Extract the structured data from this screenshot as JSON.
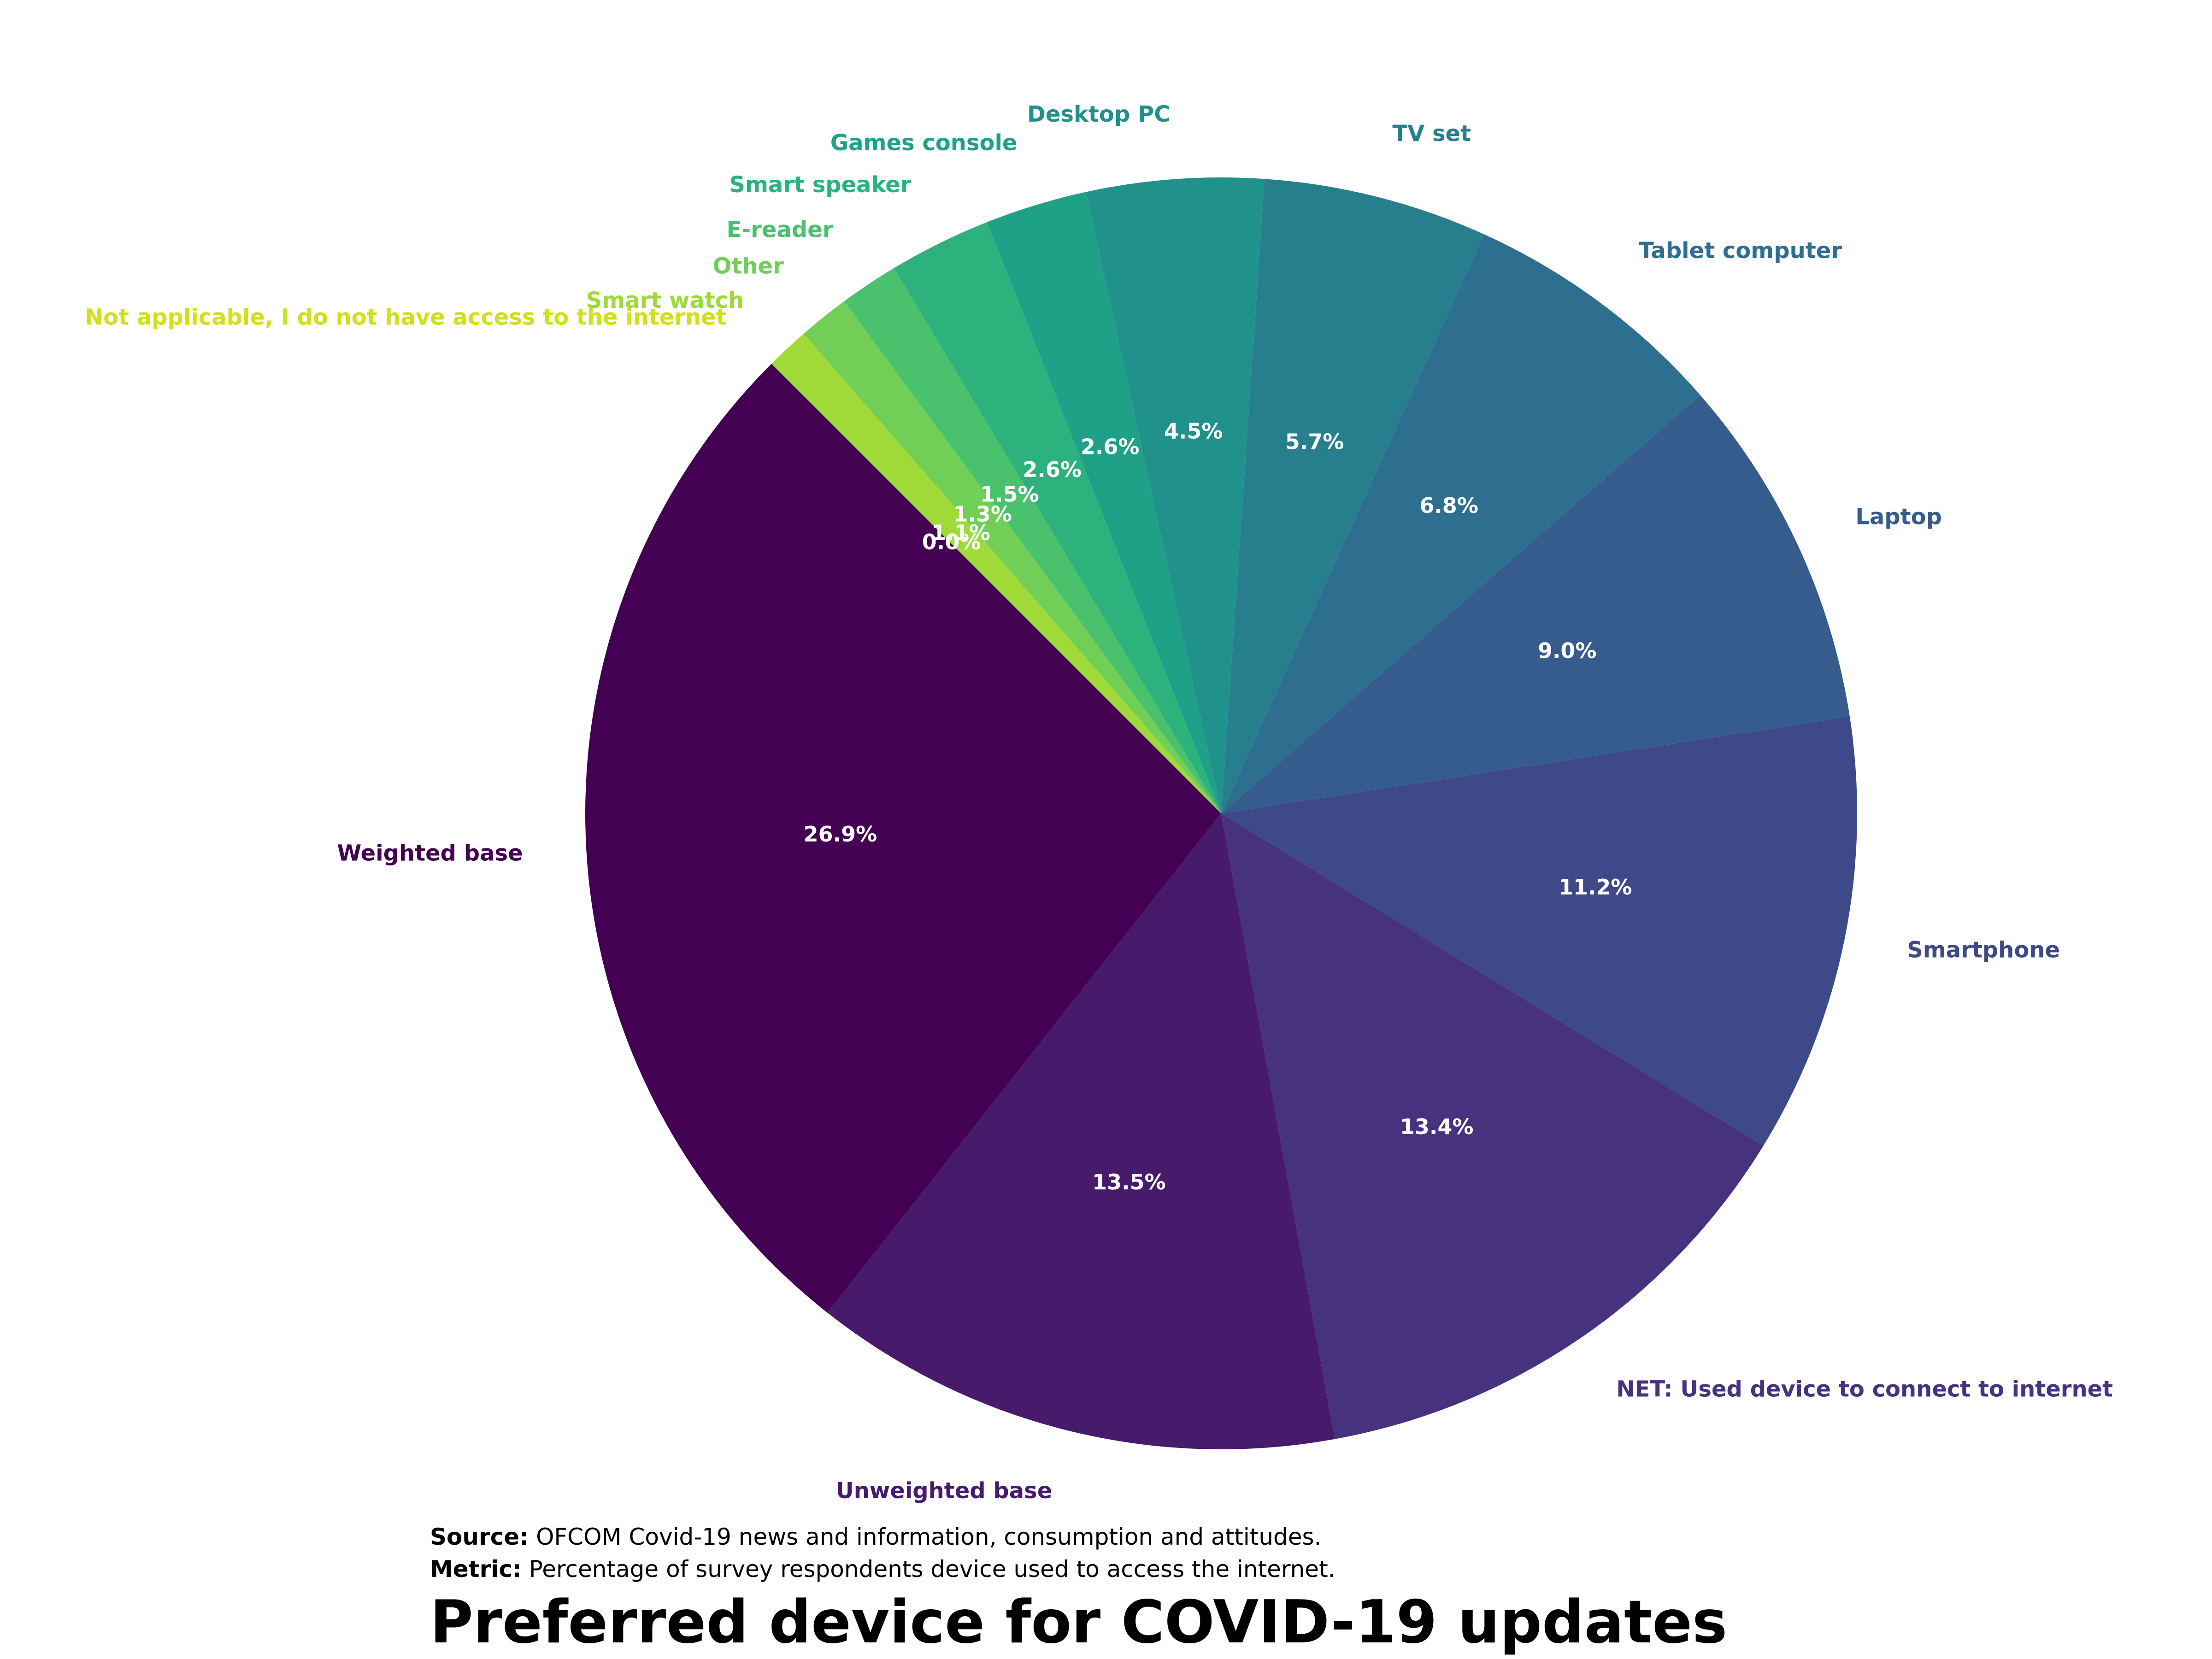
{
  "chart_data": {
    "type": "pie",
    "title": "Preferred device for COVID-19 updates",
    "start_angle_deg": 135,
    "direction": "counterclockwise",
    "legend": "none",
    "slices": [
      {
        "label": "Weighted base",
        "percent": 26.9,
        "pct_label": "26.9%",
        "color": "#440154"
      },
      {
        "label": "Unweighted base",
        "percent": 13.5,
        "pct_label": "13.5%",
        "color": "#481a6c"
      },
      {
        "label": "NET: Used device to connect to internet",
        "percent": 13.4,
        "pct_label": "13.4%",
        "color": "#46327e"
      },
      {
        "label": "Smartphone",
        "percent": 11.2,
        "pct_label": "11.2%",
        "color": "#3e4989"
      },
      {
        "label": "Laptop",
        "percent": 9.0,
        "pct_label": "9.0%",
        "color": "#365c8d"
      },
      {
        "label": "Tablet computer",
        "percent": 6.8,
        "pct_label": "6.8%",
        "color": "#2e6e8e"
      },
      {
        "label": "TV set",
        "percent": 5.7,
        "pct_label": "5.7%",
        "color": "#277f8e"
      },
      {
        "label": "Desktop PC",
        "percent": 4.5,
        "pct_label": "4.5%",
        "color": "#21918c"
      },
      {
        "label": "Games console",
        "percent": 2.6,
        "pct_label": "2.6%",
        "color": "#1fa187"
      },
      {
        "label": "Smart speaker",
        "percent": 2.6,
        "pct_label": "2.6%",
        "color": "#2db27d"
      },
      {
        "label": "E-reader",
        "percent": 1.5,
        "pct_label": "1.5%",
        "color": "#4ac16d"
      },
      {
        "label": "Other",
        "percent": 1.3,
        "pct_label": "1.3%",
        "color": "#71cf57"
      },
      {
        "label": "Smart watch",
        "percent": 1.1,
        "pct_label": "1.1%",
        "color": "#a0da39"
      },
      {
        "label": "Not applicable, I do not have access to the internet",
        "percent": 0.0,
        "pct_label": "0.0%",
        "color": "#d0e11c"
      }
    ]
  },
  "footer": {
    "source_label": "Source:",
    "source_text": "OFCOM Covid-19 news and information, consumption and attitudes.",
    "metric_label": "Metric:",
    "metric_text": "Percentage of survey respondents device used to access the internet.",
    "title": "Preferred device for COVID-19 updates"
  }
}
